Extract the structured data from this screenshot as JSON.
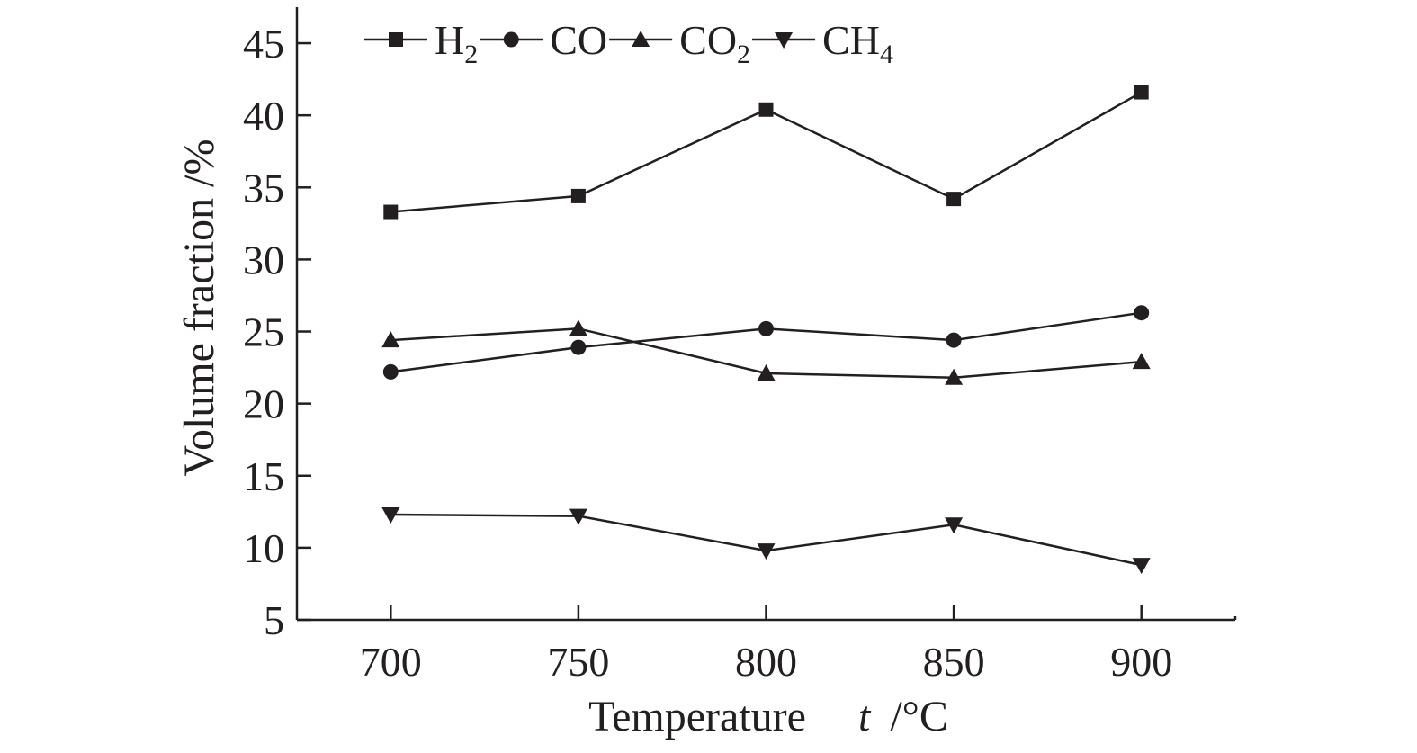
{
  "chart_data": {
    "type": "line",
    "x": [
      700,
      750,
      800,
      850,
      900
    ],
    "xlim": [
      675,
      925
    ],
    "ylim": [
      5,
      47.5
    ],
    "x_ticks": [
      700,
      750,
      800,
      850,
      900
    ],
    "y_ticks": [
      5,
      10,
      15,
      20,
      25,
      30,
      35,
      40,
      45
    ],
    "xlabel": "Temperature",
    "xlabel_var": "t",
    "xlabel_unit": "/°C",
    "ylabel": "Volume fraction /%",
    "grid": false,
    "legend_position": "top",
    "line_color": "#231f20",
    "series": [
      {
        "name": "H",
        "sub": "2",
        "marker": "square",
        "values": [
          33.3,
          34.4,
          40.4,
          34.2,
          41.6
        ]
      },
      {
        "name": "CO",
        "sub": "",
        "marker": "circle",
        "values": [
          22.2,
          23.9,
          25.2,
          24.4,
          26.3
        ]
      },
      {
        "name": "CO",
        "sub": "2",
        "marker": "triangle-up",
        "values": [
          24.4,
          25.2,
          22.1,
          21.8,
          22.9
        ]
      },
      {
        "name": "CH",
        "sub": "4",
        "marker": "triangle-down",
        "values": [
          12.3,
          12.2,
          9.8,
          11.6,
          8.8
        ]
      }
    ]
  }
}
